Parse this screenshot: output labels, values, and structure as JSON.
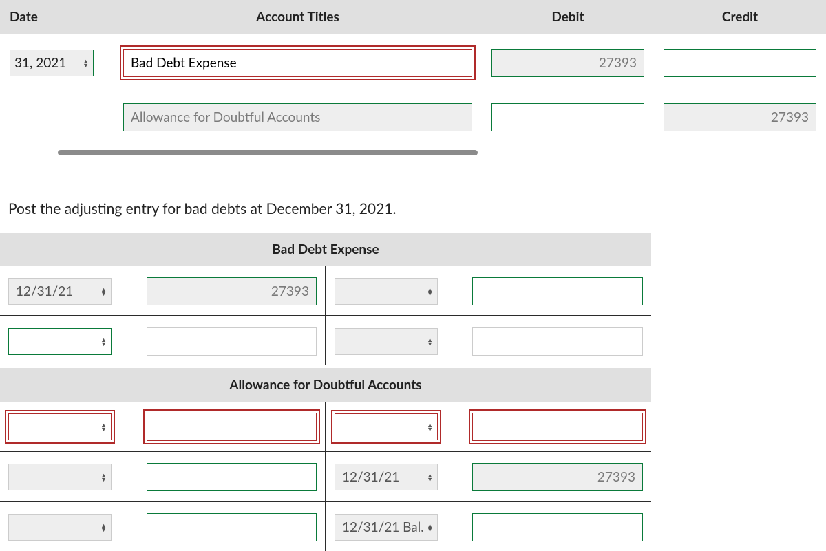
{
  "journal": {
    "headers": {
      "date": "Date",
      "title": "Account Titles",
      "debit": "Debit",
      "credit": "Credit"
    },
    "rows": [
      {
        "date": "31, 2021",
        "title": "Bad Debt Expense",
        "debit": "27393",
        "credit": "",
        "title_error": true,
        "title_locked": false,
        "debit_locked": true,
        "credit_locked": false,
        "date_pad": false
      },
      {
        "date": "",
        "title": "Allowance for Doubtful Accounts",
        "debit": "",
        "credit": "27393",
        "title_error": false,
        "title_locked": true,
        "debit_locked": false,
        "credit_locked": true,
        "date_pad": true
      }
    ]
  },
  "prompt": "Post the adjusting entry for bad debts at December 31, 2021.",
  "tacct1": {
    "title": "Bad Debt Expense",
    "rows": [
      {
        "l_date": "12/31/21",
        "l_amt": "27393",
        "r_date": "",
        "r_amt": "",
        "l_date_locked": true,
        "l_amt_locked": true,
        "l_amt_green": true,
        "r_amt_green": true,
        "rule": true
      },
      {
        "l_date": "",
        "l_amt": "",
        "r_date": "",
        "r_amt": "",
        "l_date_locked": false,
        "l_amt_locked": false,
        "l_amt_green": false,
        "r_amt_green": false,
        "rule": false
      }
    ]
  },
  "tacct2": {
    "title": "Allowance for Doubtful Accounts",
    "rows": [
      {
        "l_date": "",
        "l_amt": "",
        "r_date": "",
        "r_amt": "",
        "row_error": true,
        "rule": true,
        "r_date_locked": false,
        "r_amt_locked": false
      },
      {
        "l_date": "",
        "l_amt": "",
        "r_date": "12/31/21",
        "r_amt": "27393",
        "row_error": false,
        "rule": true,
        "r_date_locked": true,
        "r_amt_locked": true
      },
      {
        "l_date": "",
        "l_amt": "",
        "r_date": "12/31/21 Bal.",
        "r_amt": "",
        "row_error": false,
        "rule": false,
        "r_date_locked": true,
        "r_amt_locked": false
      }
    ]
  },
  "colors": {
    "header_bg": "#e0e0e0",
    "field_border_ok": "#0a7a3a",
    "field_border_err": "#b02a2a",
    "locked_bg": "#eeeeee",
    "locked_text": "#7a7a7a",
    "rule": "#2b2b2b"
  }
}
